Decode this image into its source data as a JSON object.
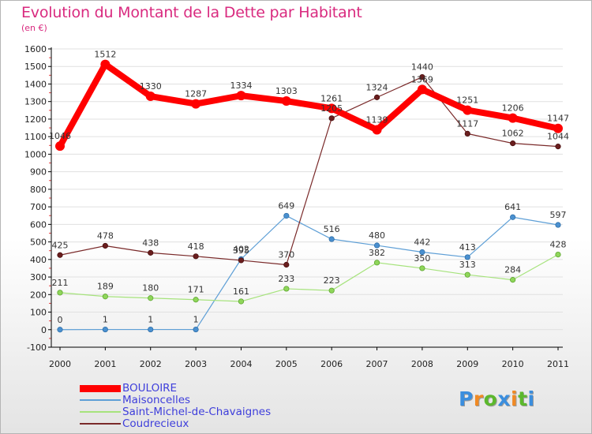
{
  "header": {
    "title": "Evolution du Montant de la Dette par Habitant",
    "subtitle": "(en €)"
  },
  "brand": {
    "text": "Proxiti"
  },
  "colors": {
    "title": "#d92a7f",
    "legend_text": "#3e3edb",
    "axis": "#000000",
    "grid": "#e0e0e0"
  },
  "chart_data": {
    "type": "line",
    "title": "Evolution du Montant de la Dette par Habitant",
    "subtitle": "(en €)",
    "xlabel": "",
    "ylabel": "",
    "x": [
      "2000",
      "2001",
      "2002",
      "2003",
      "2004",
      "2005",
      "2006",
      "2007",
      "2008",
      "2009",
      "2010",
      "2011"
    ],
    "ylim": [
      -100,
      1600
    ],
    "yticks": [
      -100,
      0,
      100,
      200,
      300,
      400,
      500,
      600,
      700,
      800,
      900,
      1000,
      1100,
      1200,
      1300,
      1400,
      1500,
      1600
    ],
    "grid": true,
    "legend": "bottom-left",
    "series": [
      {
        "name": "BOULOIRE",
        "color": "#ff0000",
        "values": [
          1046,
          1512,
          1330,
          1287,
          1334,
          1303,
          1261,
          1139,
          1369,
          1251,
          1206,
          1147
        ]
      },
      {
        "name": "Maisoncelles",
        "color": "#5e9fd6",
        "values": [
          0,
          1,
          1,
          1,
          402,
          649,
          516,
          480,
          442,
          413,
          641,
          597
        ]
      },
      {
        "name": "Saint-Michel-de-Chavaignes",
        "color": "#a6e37c",
        "values": [
          211,
          189,
          180,
          171,
          161,
          233,
          223,
          382,
          350,
          313,
          284,
          428
        ]
      },
      {
        "name": "Coudrecieux",
        "color": "#7a2a2a",
        "values": [
          425,
          478,
          438,
          418,
          395,
          370,
          1205,
          1324,
          1440,
          1117,
          1062,
          1044
        ]
      }
    ]
  }
}
